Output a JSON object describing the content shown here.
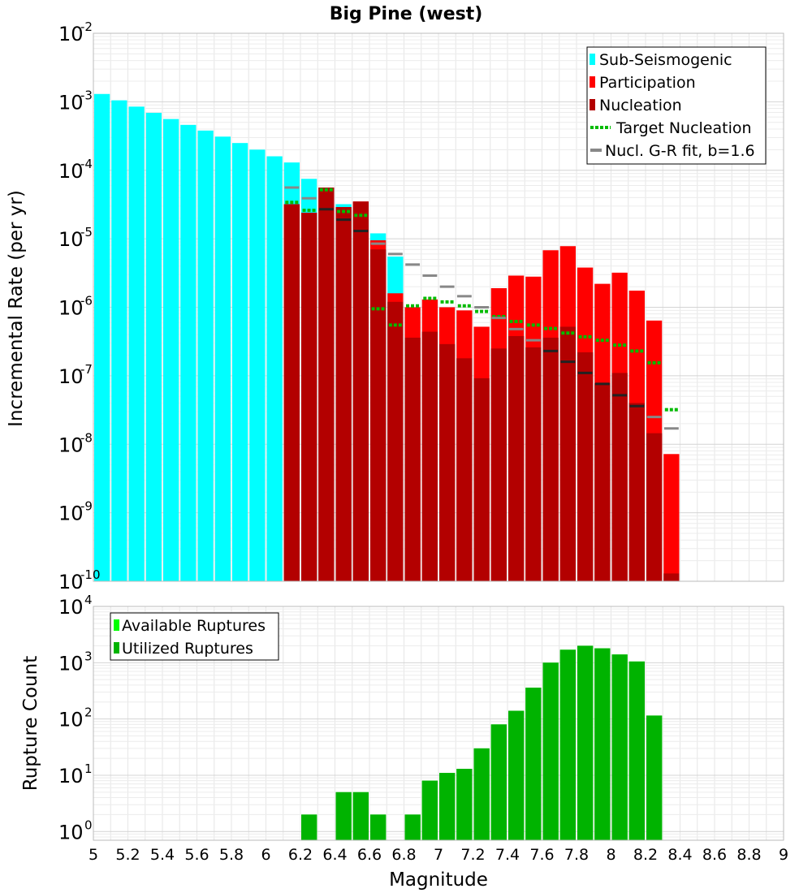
{
  "chart_data": [
    {
      "type": "bar",
      "title": "Big Pine (west)",
      "xlabel": "",
      "ylabel": "Incremental Rate (per yr)",
      "xlim": [
        5,
        9
      ],
      "ylim": [
        1e-10,
        0.01
      ],
      "ylog": true,
      "grid": true,
      "legend_position": "top-right",
      "ytick_exponents": [
        "-10",
        "-9",
        "-8",
        "-7",
        "-6",
        "-5",
        "-4",
        "-3",
        "-2"
      ],
      "colors": {
        "sub_seismogenic": "#00ffff",
        "participation": "#ff0000",
        "nucleation": "#b30000",
        "target": "#00bb00",
        "gr_fit": "#888888",
        "gr_fit_dark": "#222222"
      },
      "legend": [
        "Sub-Seismogenic",
        "Participation",
        "Nucleation",
        "Target Nucleation",
        "Nucl. G-R fit, b=1.6"
      ],
      "x": [
        5.05,
        5.15,
        5.25,
        5.35,
        5.45,
        5.55,
        5.65,
        5.75,
        5.85,
        5.95,
        6.05,
        6.15,
        6.25,
        6.35,
        6.45,
        6.55,
        6.65,
        6.75,
        6.85,
        6.95,
        7.05,
        7.15,
        7.25,
        7.35,
        7.45,
        7.55,
        7.65,
        7.75,
        7.85,
        7.95,
        8.05,
        8.15,
        8.25,
        8.35
      ],
      "series": [
        {
          "name": "Sub-Seismogenic",
          "values": [
            0.0013,
            0.00105,
            0.00085,
            0.00069,
            0.00056,
            0.00046,
            0.00038,
            0.00031,
            0.00025,
            0.0002,
            0.00016,
            0.00013,
            7.5e-05,
            5.5e-05,
            3.2e-05,
            2.9e-05,
            1.2e-05,
            5.5e-06,
            null,
            null,
            null,
            null,
            null,
            null,
            null,
            null,
            null,
            null,
            null,
            null,
            null,
            null,
            null,
            null
          ]
        },
        {
          "name": "Participation",
          "values": [
            null,
            null,
            null,
            null,
            null,
            null,
            null,
            null,
            null,
            null,
            null,
            3.2e-05,
            2.4e-05,
            5.6e-05,
            2.9e-05,
            3.5e-05,
            9.5e-06,
            1.6e-06,
            1e-06,
            1.3e-06,
            1e-06,
            9e-07,
            5.2e-07,
            1.9e-06,
            2.9e-06,
            2.8e-06,
            6.8e-06,
            7.8e-06,
            3.8e-06,
            2.2e-06,
            3.2e-06,
            1.75e-06,
            6.4e-07,
            7.2e-09
          ]
        },
        {
          "name": "Nucleation",
          "values": [
            null,
            null,
            null,
            null,
            null,
            null,
            null,
            null,
            null,
            null,
            null,
            3.2e-05,
            2.4e-05,
            5.6e-05,
            2.9e-05,
            3.5e-05,
            7e-06,
            1.2e-06,
            3.6e-07,
            4.4e-07,
            2.9e-07,
            1.8e-07,
            9.2e-08,
            2.5e-07,
            3.8e-07,
            2.6e-07,
            3.6e-07,
            5.2e-07,
            2.2e-07,
            7.8e-08,
            1.1e-07,
            4e-08,
            1.45e-08,
            1.3e-10
          ]
        },
        {
          "name": "Target Nucleation",
          "values": [
            null,
            null,
            null,
            null,
            null,
            null,
            null,
            null,
            null,
            null,
            null,
            3.4e-05,
            2.6e-05,
            5.2e-05,
            2.5e-05,
            2.2e-05,
            9.5e-07,
            5.5e-07,
            1.05e-06,
            1.35e-06,
            1.2e-06,
            1.05e-06,
            8.7e-07,
            7.3e-07,
            6.2e-07,
            5.5e-07,
            4.9e-07,
            4.2e-07,
            3.7e-07,
            3.3e-07,
            2.8e-07,
            2.3e-07,
            1.55e-07,
            3.2e-08
          ]
        },
        {
          "name": "Nucl. G-R fit, b=1.6",
          "values": [
            null,
            null,
            null,
            null,
            null,
            null,
            null,
            null,
            null,
            null,
            null,
            5.6e-05,
            3.9e-05,
            2.7e-05,
            1.9e-05,
            1.3e-05,
            8.5e-06,
            6e-06,
            4.2e-06,
            2.9e-06,
            2e-06,
            1.45e-06,
            1e-06,
            7e-07,
            4.8e-07,
            3.3e-07,
            2.3e-07,
            1.6e-07,
            1.1e-07,
            7.6e-08,
            5.2e-08,
            3.6e-08,
            2.5e-08,
            1.7e-08
          ]
        }
      ]
    },
    {
      "type": "bar",
      "title": "",
      "xlabel": "Magnitude",
      "ylabel": "Rupture Count",
      "xlim": [
        5,
        9
      ],
      "ylim": [
        0.7,
        10000.0
      ],
      "ylog": true,
      "grid": true,
      "legend_position": "top-left",
      "ytick_exponents": [
        "0",
        "1",
        "2",
        "3",
        "4"
      ],
      "xticks": [
        "5",
        "5.2",
        "5.4",
        "5.6",
        "5.8",
        "6",
        "6.2",
        "6.4",
        "6.6",
        "6.8",
        "7",
        "7.2",
        "7.4",
        "7.6",
        "7.8",
        "8",
        "8.2",
        "8.4",
        "8.6",
        "8.8",
        "9"
      ],
      "colors": {
        "available": "#00ff00",
        "utilized": "#00b300"
      },
      "legend": [
        "Available Ruptures",
        "Utilized Ruptures"
      ],
      "x": [
        6.25,
        6.45,
        6.55,
        6.65,
        6.85,
        6.95,
        7.05,
        7.15,
        7.25,
        7.35,
        7.45,
        7.55,
        7.65,
        7.75,
        7.85,
        7.95,
        8.05,
        8.15,
        8.25
      ],
      "series": [
        {
          "name": "Available Ruptures",
          "values": [
            2,
            5,
            5,
            2,
            2,
            8,
            11,
            13,
            30,
            80,
            140,
            360,
            1000,
            1700,
            2000,
            1800,
            1400,
            1050,
            115
          ]
        },
        {
          "name": "Utilized Ruptures",
          "values": [
            2,
            5,
            5,
            2,
            2,
            8,
            11,
            13,
            30,
            80,
            140,
            360,
            1000,
            1700,
            2000,
            1800,
            1400,
            1050,
            115
          ]
        }
      ]
    }
  ]
}
